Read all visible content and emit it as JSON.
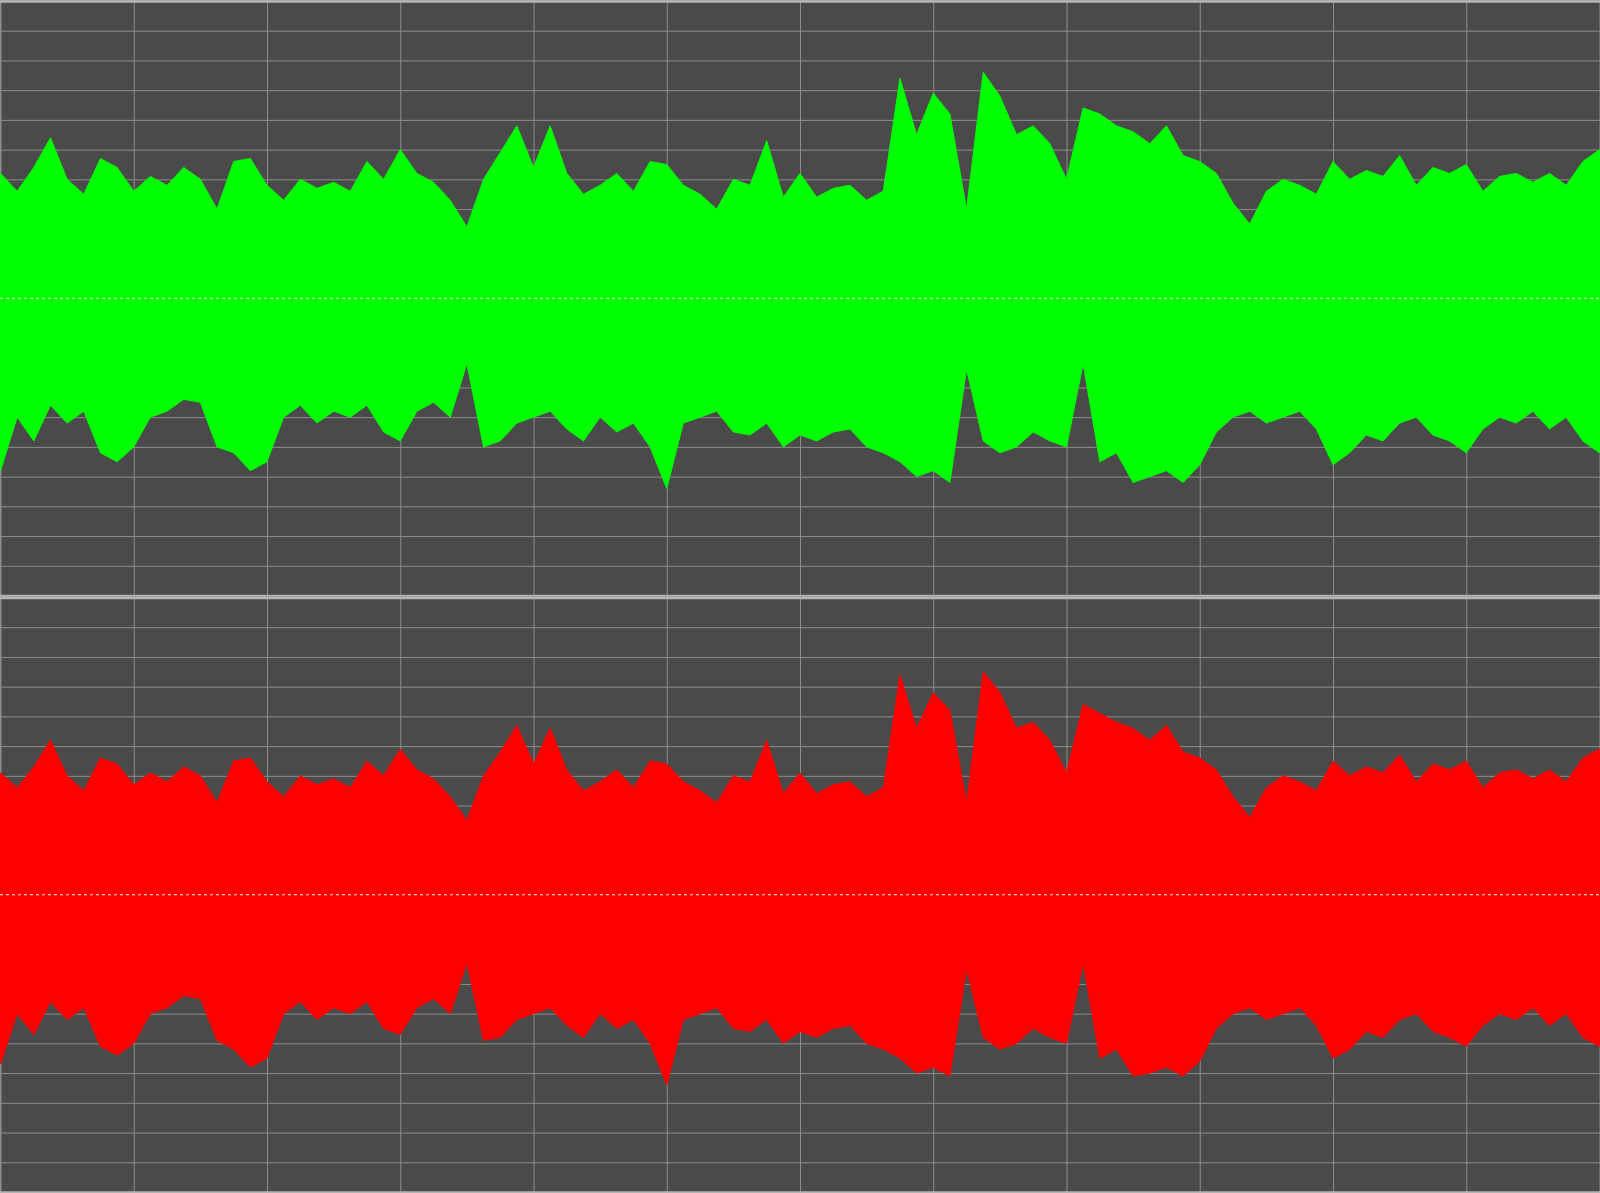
{
  "chart_data": [
    {
      "type": "area",
      "x": [
        0,
        1,
        2,
        3,
        4,
        5,
        6,
        7,
        8,
        9,
        10,
        11,
        12,
        13,
        14,
        15,
        16,
        17,
        18,
        19,
        20,
        21,
        22,
        23,
        24,
        25,
        26,
        27,
        28,
        29,
        30,
        31,
        32,
        33,
        34,
        35,
        36,
        37,
        38,
        39,
        40,
        41,
        42,
        43,
        44,
        45,
        46,
        47,
        48,
        49,
        50,
        51,
        52,
        53,
        54,
        55,
        56,
        57,
        58,
        59,
        60,
        61,
        62,
        63,
        64,
        65,
        66,
        67,
        68,
        69,
        70,
        71,
        72,
        73,
        74,
        75,
        76,
        77,
        78,
        79,
        80,
        81,
        82,
        83,
        84,
        85,
        86,
        87,
        88,
        89,
        90,
        91,
        92,
        93,
        94,
        95,
        96
      ],
      "xlim": [
        0,
        96
      ],
      "xticks": [
        0,
        8,
        16,
        24,
        32,
        40,
        48,
        56,
        64,
        72,
        80,
        88,
        96
      ],
      "ylim": [
        -1,
        1
      ],
      "yticks": [
        -1,
        -0.9,
        -0.8,
        -0.7,
        -0.6,
        -0.5,
        -0.4,
        -0.3,
        -0.2,
        -0.1,
        0,
        0.1,
        0.2,
        0.3,
        0.4,
        0.5,
        0.6,
        0.7,
        0.8,
        0.9,
        1
      ],
      "grid": true,
      "tick_labels": false,
      "series": [
        {
          "color": "#00ff00",
          "values": [
            0.42,
            0.36,
            0.44,
            0.54,
            0.4,
            0.35,
            0.47,
            0.44,
            0.36,
            0.41,
            0.38,
            0.44,
            0.4,
            0.3,
            0.46,
            0.47,
            0.38,
            0.33,
            0.4,
            0.37,
            0.39,
            0.36,
            0.46,
            0.4,
            0.5,
            0.42,
            0.39,
            0.33,
            0.24,
            0.4,
            0.49,
            0.58,
            0.44,
            0.58,
            0.42,
            0.35,
            0.38,
            0.42,
            0.36,
            0.46,
            0.45,
            0.38,
            0.35,
            0.3,
            0.4,
            0.38,
            0.53,
            0.34,
            0.42,
            0.34,
            0.37,
            0.38,
            0.33,
            0.36,
            0.74,
            0.55,
            0.69,
            0.62,
            0.3,
            0.76,
            0.68,
            0.55,
            0.58,
            0.52,
            0.4,
            0.64,
            0.62,
            0.58,
            0.56,
            0.52,
            0.58,
            0.48,
            0.46,
            0.42,
            0.32,
            0.25,
            0.36,
            0.4,
            0.38,
            0.35,
            0.46,
            0.4,
            0.43,
            0.41,
            0.48,
            0.38,
            0.44,
            0.42,
            0.45,
            0.36,
            0.41,
            0.42,
            0.39,
            0.42,
            0.38,
            0.46,
            0.5
          ]
        },
        {
          "color": "#00ff00",
          "values": [
            -0.58,
            -0.4,
            -0.48,
            -0.36,
            -0.42,
            -0.38,
            -0.52,
            -0.55,
            -0.5,
            -0.4,
            -0.38,
            -0.34,
            -0.35,
            -0.5,
            -0.52,
            -0.58,
            -0.55,
            -0.4,
            -0.36,
            -0.42,
            -0.38,
            -0.4,
            -0.36,
            -0.45,
            -0.48,
            -0.38,
            -0.35,
            -0.4,
            -0.22,
            -0.5,
            -0.48,
            -0.42,
            -0.4,
            -0.38,
            -0.44,
            -0.48,
            -0.4,
            -0.45,
            -0.42,
            -0.5,
            -0.64,
            -0.42,
            -0.4,
            -0.38,
            -0.45,
            -0.46,
            -0.42,
            -0.5,
            -0.46,
            -0.48,
            -0.45,
            -0.44,
            -0.5,
            -0.52,
            -0.55,
            -0.6,
            -0.58,
            -0.62,
            -0.24,
            -0.48,
            -0.52,
            -0.5,
            -0.45,
            -0.48,
            -0.5,
            -0.22,
            -0.55,
            -0.52,
            -0.62,
            -0.6,
            -0.58,
            -0.62,
            -0.56,
            -0.45,
            -0.4,
            -0.38,
            -0.42,
            -0.4,
            -0.38,
            -0.44,
            -0.56,
            -0.52,
            -0.46,
            -0.48,
            -0.42,
            -0.4,
            -0.46,
            -0.48,
            -0.52,
            -0.44,
            -0.4,
            -0.42,
            -0.38,
            -0.44,
            -0.4,
            -0.48,
            -0.52
          ]
        }
      ]
    },
    {
      "type": "area",
      "x": [
        0,
        1,
        2,
        3,
        4,
        5,
        6,
        7,
        8,
        9,
        10,
        11,
        12,
        13,
        14,
        15,
        16,
        17,
        18,
        19,
        20,
        21,
        22,
        23,
        24,
        25,
        26,
        27,
        28,
        29,
        30,
        31,
        32,
        33,
        34,
        35,
        36,
        37,
        38,
        39,
        40,
        41,
        42,
        43,
        44,
        45,
        46,
        47,
        48,
        49,
        50,
        51,
        52,
        53,
        54,
        55,
        56,
        57,
        58,
        59,
        60,
        61,
        62,
        63,
        64,
        65,
        66,
        67,
        68,
        69,
        70,
        71,
        72,
        73,
        74,
        75,
        76,
        77,
        78,
        79,
        80,
        81,
        82,
        83,
        84,
        85,
        86,
        87,
        88,
        89,
        90,
        91,
        92,
        93,
        94,
        95,
        96
      ],
      "xlim": [
        0,
        96
      ],
      "xticks": [
        0,
        8,
        16,
        24,
        32,
        40,
        48,
        56,
        64,
        72,
        80,
        88,
        96
      ],
      "ylim": [
        -1,
        1
      ],
      "yticks": [
        -1,
        -0.9,
        -0.8,
        -0.7,
        -0.6,
        -0.5,
        -0.4,
        -0.3,
        -0.2,
        -0.1,
        0,
        0.1,
        0.2,
        0.3,
        0.4,
        0.5,
        0.6,
        0.7,
        0.8,
        0.9,
        1
      ],
      "grid": true,
      "tick_labels": false,
      "series": [
        {
          "color": "#ff0000",
          "values": [
            0.41,
            0.36,
            0.43,
            0.52,
            0.4,
            0.35,
            0.46,
            0.44,
            0.37,
            0.41,
            0.38,
            0.43,
            0.4,
            0.31,
            0.45,
            0.46,
            0.38,
            0.33,
            0.4,
            0.37,
            0.39,
            0.36,
            0.45,
            0.4,
            0.49,
            0.42,
            0.39,
            0.33,
            0.25,
            0.4,
            0.48,
            0.57,
            0.44,
            0.56,
            0.42,
            0.35,
            0.38,
            0.42,
            0.36,
            0.45,
            0.44,
            0.38,
            0.35,
            0.31,
            0.4,
            0.38,
            0.52,
            0.34,
            0.41,
            0.34,
            0.37,
            0.38,
            0.33,
            0.36,
            0.74,
            0.56,
            0.68,
            0.62,
            0.31,
            0.75,
            0.68,
            0.56,
            0.58,
            0.52,
            0.41,
            0.64,
            0.61,
            0.58,
            0.56,
            0.52,
            0.57,
            0.48,
            0.46,
            0.42,
            0.33,
            0.26,
            0.36,
            0.4,
            0.38,
            0.35,
            0.45,
            0.4,
            0.43,
            0.41,
            0.47,
            0.38,
            0.44,
            0.42,
            0.45,
            0.36,
            0.41,
            0.42,
            0.39,
            0.42,
            0.38,
            0.46,
            0.49
          ]
        },
        {
          "color": "#ff0000",
          "values": [
            -0.57,
            -0.4,
            -0.47,
            -0.36,
            -0.42,
            -0.38,
            -0.51,
            -0.54,
            -0.5,
            -0.4,
            -0.38,
            -0.34,
            -0.35,
            -0.49,
            -0.52,
            -0.58,
            -0.55,
            -0.4,
            -0.36,
            -0.42,
            -0.38,
            -0.4,
            -0.36,
            -0.45,
            -0.47,
            -0.38,
            -0.35,
            -0.4,
            -0.23,
            -0.49,
            -0.48,
            -0.42,
            -0.4,
            -0.38,
            -0.44,
            -0.48,
            -0.4,
            -0.45,
            -0.42,
            -0.5,
            -0.64,
            -0.42,
            -0.4,
            -0.38,
            -0.45,
            -0.46,
            -0.42,
            -0.5,
            -0.46,
            -0.48,
            -0.45,
            -0.44,
            -0.5,
            -0.52,
            -0.55,
            -0.6,
            -0.58,
            -0.61,
            -0.25,
            -0.48,
            -0.52,
            -0.5,
            -0.45,
            -0.48,
            -0.5,
            -0.23,
            -0.55,
            -0.52,
            -0.61,
            -0.6,
            -0.58,
            -0.61,
            -0.56,
            -0.45,
            -0.4,
            -0.38,
            -0.42,
            -0.4,
            -0.38,
            -0.44,
            -0.55,
            -0.52,
            -0.46,
            -0.48,
            -0.42,
            -0.4,
            -0.46,
            -0.48,
            -0.51,
            -0.44,
            -0.4,
            -0.42,
            -0.38,
            -0.44,
            -0.4,
            -0.48,
            -0.51
          ]
        }
      ]
    }
  ]
}
